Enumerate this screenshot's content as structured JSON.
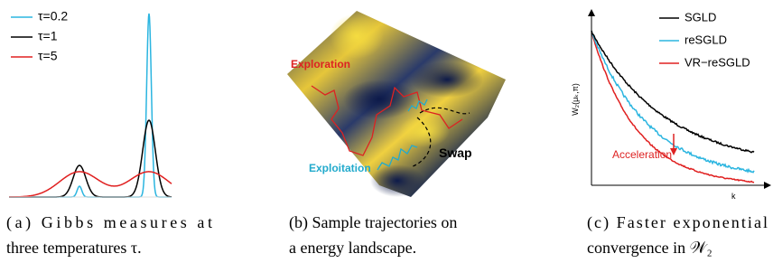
{
  "panels": [
    {
      "legend": [
        "τ=0.2",
        "τ=1",
        "τ=5"
      ],
      "caption": [
        "(a) Gibbs measures at",
        "three temperatures τ."
      ]
    },
    {
      "labels": [
        "Exploration",
        "Exploitation",
        "Swap"
      ],
      "caption": [
        "(b) Sample trajectories on",
        "a energy landscape."
      ]
    },
    {
      "legend": [
        "SGLD",
        "reSGLD",
        "VR−reSGLD"
      ],
      "ylabel": "W₂(μₖ,π)",
      "xlabel": "k",
      "annotation": "Acceleration",
      "caption": [
        "(c) Faster exponential",
        "convergence in 𝒲₂"
      ]
    }
  ]
}
